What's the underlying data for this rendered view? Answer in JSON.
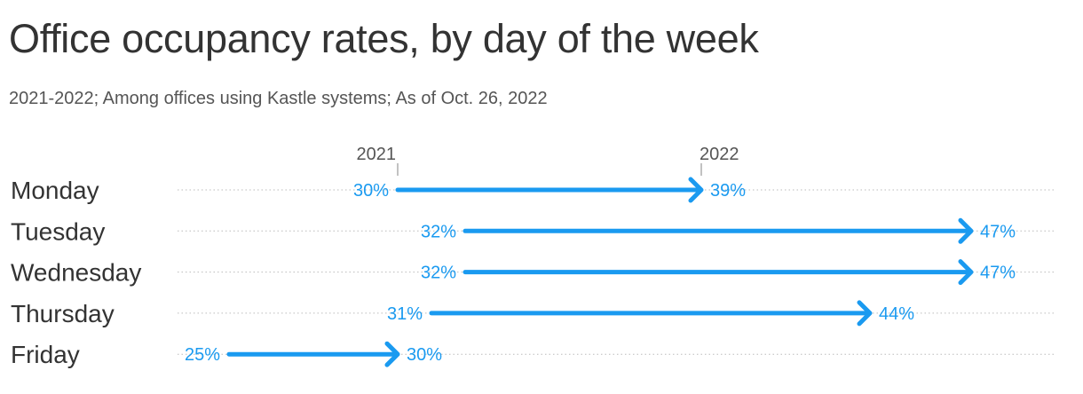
{
  "chart_data": {
    "type": "arrow",
    "title": "Office occupancy rates, by day of the week",
    "subtitle": "2021-2022; Among offices using Kastle systems; As of Oct. 26, 2022",
    "start_label": "2021",
    "end_label": "2022",
    "categories": [
      "Monday",
      "Tuesday",
      "Wednesday",
      "Thursday",
      "Friday"
    ],
    "series": [
      {
        "name": "2021",
        "values": [
          30,
          32,
          32,
          31,
          25
        ]
      },
      {
        "name": "2022",
        "values": [
          39,
          47,
          47,
          44,
          30
        ]
      }
    ],
    "value_suffix": "%",
    "xlim": [
      25,
      48
    ],
    "grid": true,
    "color": "#1a9af0"
  }
}
